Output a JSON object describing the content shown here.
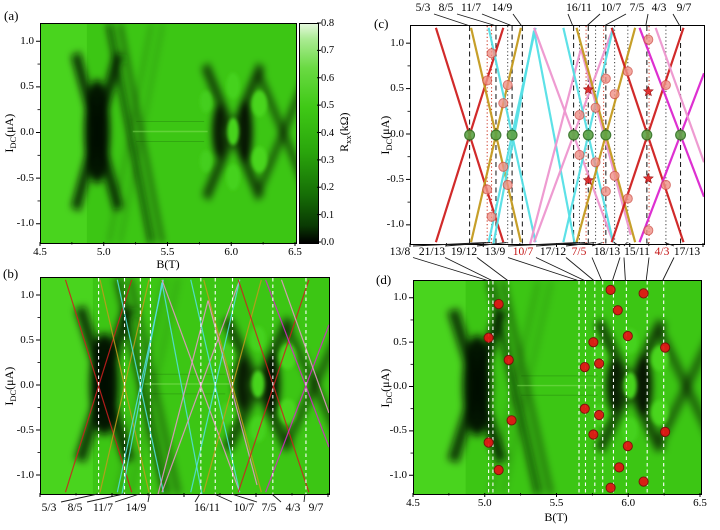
{
  "figure": {
    "panel_labels": {
      "a": "(a)",
      "b": "(b)",
      "c": "(c)",
      "d": "(d)"
    },
    "axes": {
      "x_label": "B(T)",
      "y_label": {
        "pre": "I",
        "sub": "DC",
        "post": "(μA)"
      },
      "x_ticks": [
        "4.5",
        "5.0",
        "5.5",
        "6.0",
        "6.5"
      ],
      "x_tick_values": [
        4.5,
        5.0,
        5.5,
        6.0,
        6.5
      ],
      "x_minor_values": [
        4.75,
        5.25,
        5.75,
        6.25
      ],
      "y_ticks": [
        "1.0",
        "0.5",
        "0.0",
        "-0.5",
        "-1.0"
      ],
      "y_tick_values": [
        1.0,
        0.5,
        0.0,
        -0.5,
        -1.0
      ],
      "y_minor_values": [
        0.75,
        0.25,
        -0.25,
        -0.75
      ],
      "x_range": [
        4.5,
        6.5
      ],
      "y_range": [
        -1.2,
        1.2
      ]
    },
    "colorbar": {
      "label": {
        "pre": "R",
        "sub": "xx",
        "post": "(kΩ)"
      },
      "ticks": [
        "0.0",
        "0.1",
        "0.2",
        "0.3",
        "0.4",
        "0.5",
        "0.6",
        "0.7",
        "0.8"
      ],
      "tick_values": [
        0.0,
        0.1,
        0.2,
        0.3,
        0.4,
        0.5,
        0.6,
        0.7,
        0.8
      ],
      "range": [
        0,
        0.8
      ]
    },
    "fractions": {
      "primary": [
        {
          "label": "5/3",
          "B": 4.9
        },
        {
          "label": "8/5",
          "B": 5.08
        },
        {
          "label": "11/7",
          "B": 5.19
        },
        {
          "label": "14/9",
          "B": 5.26
        },
        {
          "label": "16/11",
          "B": 5.61
        },
        {
          "label": "10/7",
          "B": 5.71
        },
        {
          "label": "7/5",
          "B": 5.83
        },
        {
          "label": "4/3",
          "B": 6.11
        },
        {
          "label": "9/7",
          "B": 6.34
        }
      ],
      "secondary": [
        {
          "label": "13/8",
          "B": 5.02,
          "red_label": false,
          "red_line": true
        },
        {
          "label": "21/13",
          "B": 5.05,
          "red_label": false,
          "red_line": true
        },
        {
          "label": "19/12",
          "B": 5.16,
          "red_label": false,
          "red_line": false
        },
        {
          "label": "13/9",
          "B": 5.65,
          "red_label": false,
          "red_line": false
        },
        {
          "label": "10/7",
          "B": 5.695,
          "red_label": true,
          "red_line": true
        },
        {
          "label": "17/12",
          "B": 5.76,
          "red_label": false,
          "red_line": false
        },
        {
          "label": "7/5",
          "B": 5.815,
          "red_label": true,
          "red_line": true
        },
        {
          "label": "18/13",
          "B": 5.89,
          "red_label": false,
          "red_line": false
        },
        {
          "label": "15/11",
          "B": 5.98,
          "red_label": false,
          "red_line": false
        },
        {
          "label": "4/3",
          "B": 6.125,
          "red_label": true,
          "red_line": true
        },
        {
          "label": "17/13",
          "B": 6.24,
          "red_label": false,
          "red_line": false
        }
      ]
    }
  },
  "colors": {
    "red": "#cf1f1f",
    "olive": "#c49a1e",
    "cyan": "#55e0e6",
    "pink": "#ee96cf",
    "magenta": "#dc25cf",
    "green_dot": "#5da344",
    "green_dot_edge": "#2d6e1f",
    "salmon": "#f09186",
    "salmon_edge": "#cf5148",
    "red_dot": "#e41414",
    "red_dot_edge": "#7c0a0a",
    "dashed": "#111111",
    "dotted_red": "#c92e1a",
    "dotted_black": "#3c3c3c",
    "white_dash": "#ffffff",
    "bright_green": "#3cc614",
    "star": "#e02020"
  },
  "chart_data": {
    "type": "composite",
    "shared_axes": {
      "x_label": "B(T)",
      "x_range": [
        4.5,
        6.5
      ],
      "y_label": "I_DC(μA)",
      "y_range": [
        -1.2,
        1.2
      ],
      "x_ticks": [
        4.5,
        5.0,
        5.5,
        6.0,
        6.5
      ],
      "y_ticks": [
        1.0,
        0.5,
        0.0,
        -0.5,
        -1.0
      ]
    },
    "lines": [
      {
        "c": "red",
        "p": [
          [
            4.67,
            1.18
          ],
          [
            5.13,
            -1.18
          ]
        ]
      },
      {
        "c": "red",
        "p": [
          [
            4.67,
            -1.18
          ],
          [
            5.13,
            1.18
          ]
        ]
      },
      {
        "c": "olive",
        "p": [
          [
            4.91,
            1.18
          ],
          [
            5.25,
            -1.18
          ]
        ]
      },
      {
        "c": "olive",
        "p": [
          [
            4.91,
            -1.18
          ],
          [
            5.25,
            1.18
          ]
        ]
      },
      {
        "c": "cyan",
        "p": [
          [
            5.03,
            1.18
          ],
          [
            5.35,
            -1.18
          ]
        ]
      },
      {
        "c": "cyan",
        "p": [
          [
            5.03,
            -1.18
          ],
          [
            5.35,
            1.18
          ]
        ]
      },
      {
        "c": "cyan",
        "p": [
          [
            5.06,
            -1.22
          ],
          [
            5.34,
            1.15
          ]
        ]
      },
      {
        "c": "cyan",
        "p": [
          [
            5.34,
            1.15
          ],
          [
            5.62,
            -1.22
          ]
        ]
      },
      {
        "c": "pink",
        "p": [
          [
            5.31,
            -1.22
          ],
          [
            5.66,
            0.95
          ]
        ]
      },
      {
        "c": "pink",
        "p": [
          [
            5.66,
            0.95
          ],
          [
            6.0,
            -1.1
          ]
        ]
      },
      {
        "c": "pink",
        "p": [
          [
            5.34,
            1.18
          ],
          [
            5.88,
            -1.18
          ]
        ]
      },
      {
        "c": "pink",
        "p": [
          [
            5.34,
            -1.18
          ],
          [
            5.88,
            1.18
          ]
        ]
      },
      {
        "c": "cyan",
        "p": [
          [
            5.54,
            1.18
          ],
          [
            5.88,
            -1.18
          ]
        ]
      },
      {
        "c": "cyan",
        "p": [
          [
            5.54,
            -1.18
          ],
          [
            5.88,
            1.18
          ]
        ]
      },
      {
        "c": "olive",
        "p": [
          [
            5.63,
            1.18
          ],
          [
            6.03,
            -1.18
          ]
        ]
      },
      {
        "c": "olive",
        "p": [
          [
            5.63,
            -1.18
          ],
          [
            6.03,
            1.18
          ]
        ]
      },
      {
        "c": "red",
        "p": [
          [
            5.87,
            1.18
          ],
          [
            6.36,
            -1.18
          ]
        ]
      },
      {
        "c": "red",
        "p": [
          [
            5.87,
            -1.18
          ],
          [
            6.36,
            1.18
          ]
        ]
      },
      {
        "c": "magenta",
        "p": [
          [
            6.06,
            1.18
          ],
          [
            6.5,
            -0.68
          ]
        ]
      },
      {
        "c": "magenta",
        "p": [
          [
            6.06,
            -1.18
          ],
          [
            6.5,
            0.68
          ]
        ]
      },
      {
        "c": "pink",
        "p": [
          [
            6.17,
            1.18
          ],
          [
            6.5,
            -0.3
          ]
        ]
      }
    ],
    "panel_a": {
      "type": "heatmap",
      "description": "Rxx(kOhm) color map vs B(T) and IDC(uA), black-green-white colormap",
      "colorbar": {
        "label": "Rxx(kΩ)",
        "range": [
          0,
          0.8
        ]
      }
    },
    "panel_b": {
      "type": "heatmap+lines",
      "dashed_vertical_fractions": [
        "5/3",
        "8/5",
        "11/7",
        "14/9",
        "16/11",
        "10/7",
        "7/5",
        "4/3",
        "9/7"
      ]
    },
    "panel_c": {
      "type": "line",
      "green_dots_B": [
        4.9,
        5.08,
        5.19,
        5.61,
        5.71,
        5.83,
        6.11,
        6.34
      ],
      "salmon_dots": [
        [
          5.02,
          0.6
        ],
        [
          5.02,
          -0.6
        ],
        [
          5.05,
          0.9
        ],
        [
          5.05,
          -0.9
        ],
        [
          5.13,
          0.35
        ],
        [
          5.13,
          -0.35
        ],
        [
          5.16,
          0.55
        ],
        [
          5.16,
          -0.55
        ],
        [
          5.65,
          0.22
        ],
        [
          5.65,
          -0.22
        ],
        [
          5.76,
          0.3
        ],
        [
          5.76,
          -0.3
        ],
        [
          5.83,
          0.62
        ],
        [
          5.83,
          -0.62
        ],
        [
          5.89,
          0.45
        ],
        [
          5.89,
          -0.45
        ],
        [
          5.98,
          0.7
        ],
        [
          5.98,
          -0.7
        ],
        [
          6.12,
          1.05
        ],
        [
          6.12,
          -1.05
        ],
        [
          6.24,
          0.55
        ],
        [
          6.24,
          -0.55
        ]
      ],
      "star_markers": [
        [
          5.71,
          0.5
        ],
        [
          5.71,
          -0.5
        ],
        [
          6.12,
          0.48
        ],
        [
          6.12,
          -0.48
        ]
      ]
    },
    "panel_d": {
      "type": "heatmap+markers",
      "dashed_vertical_fractions": [
        "13/8",
        "21/13",
        "19/12",
        "13/9",
        "10/7",
        "17/12",
        "7/5",
        "18/13",
        "15/11",
        "4/3",
        "17/13"
      ],
      "red_dots": [
        [
          5.09,
          0.94
        ],
        [
          5.02,
          0.56
        ],
        [
          5.16,
          0.31
        ],
        [
          5.18,
          -0.37
        ],
        [
          5.02,
          -0.62
        ],
        [
          5.09,
          -0.93
        ],
        [
          5.87,
          1.1
        ],
        [
          6.1,
          1.06
        ],
        [
          5.92,
          0.87
        ],
        [
          5.99,
          0.58
        ],
        [
          6.25,
          0.45
        ],
        [
          5.75,
          0.51
        ],
        [
          5.79,
          0.27
        ],
        [
          5.69,
          0.23
        ],
        [
          5.69,
          -0.24
        ],
        [
          5.79,
          -0.31
        ],
        [
          5.75,
          -0.53
        ],
        [
          5.99,
          -0.66
        ],
        [
          6.25,
          -0.5
        ],
        [
          5.93,
          -0.9
        ],
        [
          6.1,
          -1.06
        ],
        [
          5.87,
          -1.13
        ]
      ]
    }
  }
}
